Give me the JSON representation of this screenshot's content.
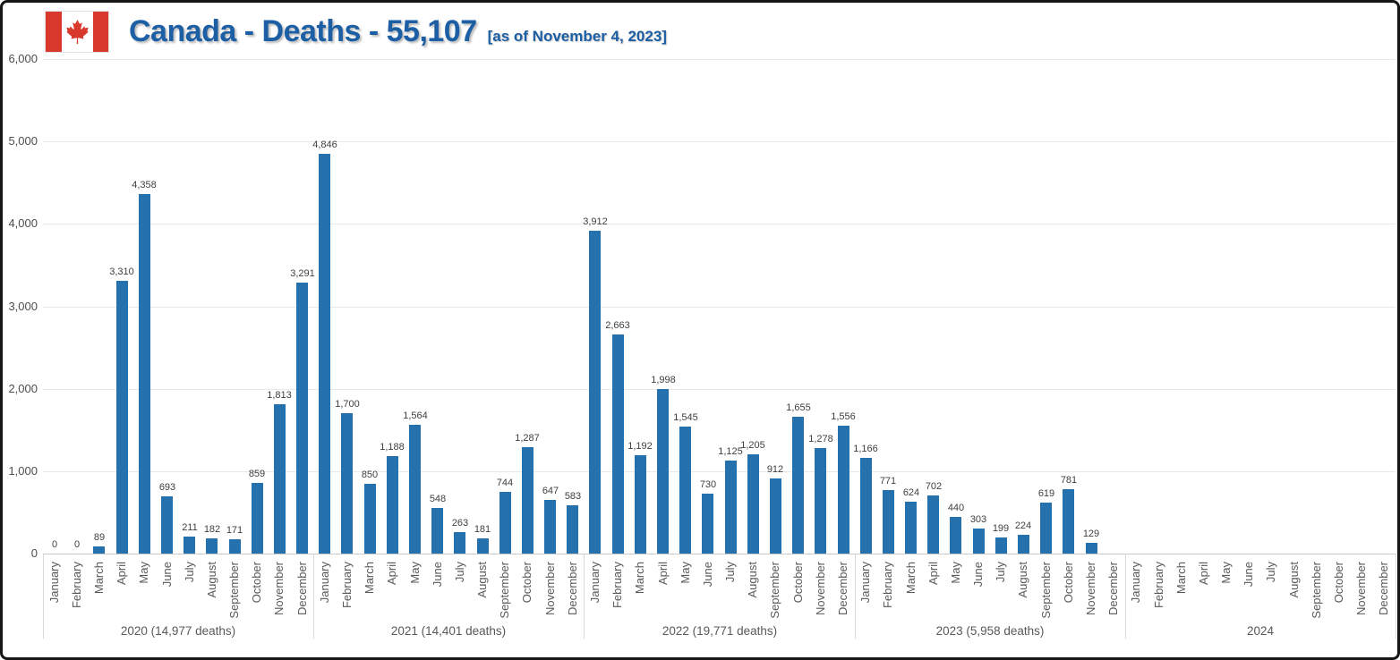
{
  "header": {
    "title": "Canada - Deaths - 55,107",
    "subtitle": "[as of November 4, 2023]"
  },
  "colors": {
    "bar": "#2571AE",
    "title_text": "#1D5FA4",
    "flag_red": "#D8392C",
    "gridline": "#E9E9E9"
  },
  "chart_data": {
    "type": "bar",
    "title": "Canada - Deaths - 55,107 [as of November 4, 2023]",
    "xlabel": "",
    "ylabel": "",
    "ylim": [
      0,
      6000
    ],
    "yticks": [
      0,
      1000,
      2000,
      3000,
      4000,
      5000,
      6000
    ],
    "grid": true,
    "legend": "none",
    "months": [
      "January",
      "February",
      "March",
      "April",
      "May",
      "June",
      "July",
      "August",
      "September",
      "October",
      "November",
      "December"
    ],
    "groups": [
      {
        "label": "2020 (14,977 deaths)",
        "values": [
          0,
          0,
          89,
          3310,
          4358,
          693,
          211,
          182,
          171,
          859,
          1813,
          3291
        ]
      },
      {
        "label": "2021 (14,401 deaths)",
        "values": [
          4846,
          1700,
          850,
          1188,
          1564,
          548,
          263,
          181,
          744,
          1287,
          647,
          583
        ]
      },
      {
        "label": "2022 (19,771 deaths)",
        "values": [
          3912,
          2663,
          1192,
          1998,
          1545,
          730,
          1125,
          1205,
          912,
          1655,
          1278,
          1556
        ]
      },
      {
        "label": "2023 (5,958 deaths)",
        "values": [
          1166,
          771,
          624,
          702,
          440,
          303,
          199,
          224,
          619,
          781,
          129,
          null
        ]
      },
      {
        "label": "2024",
        "values": [
          null,
          null,
          null,
          null,
          null,
          null,
          null,
          null,
          null,
          null,
          null,
          null
        ]
      }
    ]
  }
}
